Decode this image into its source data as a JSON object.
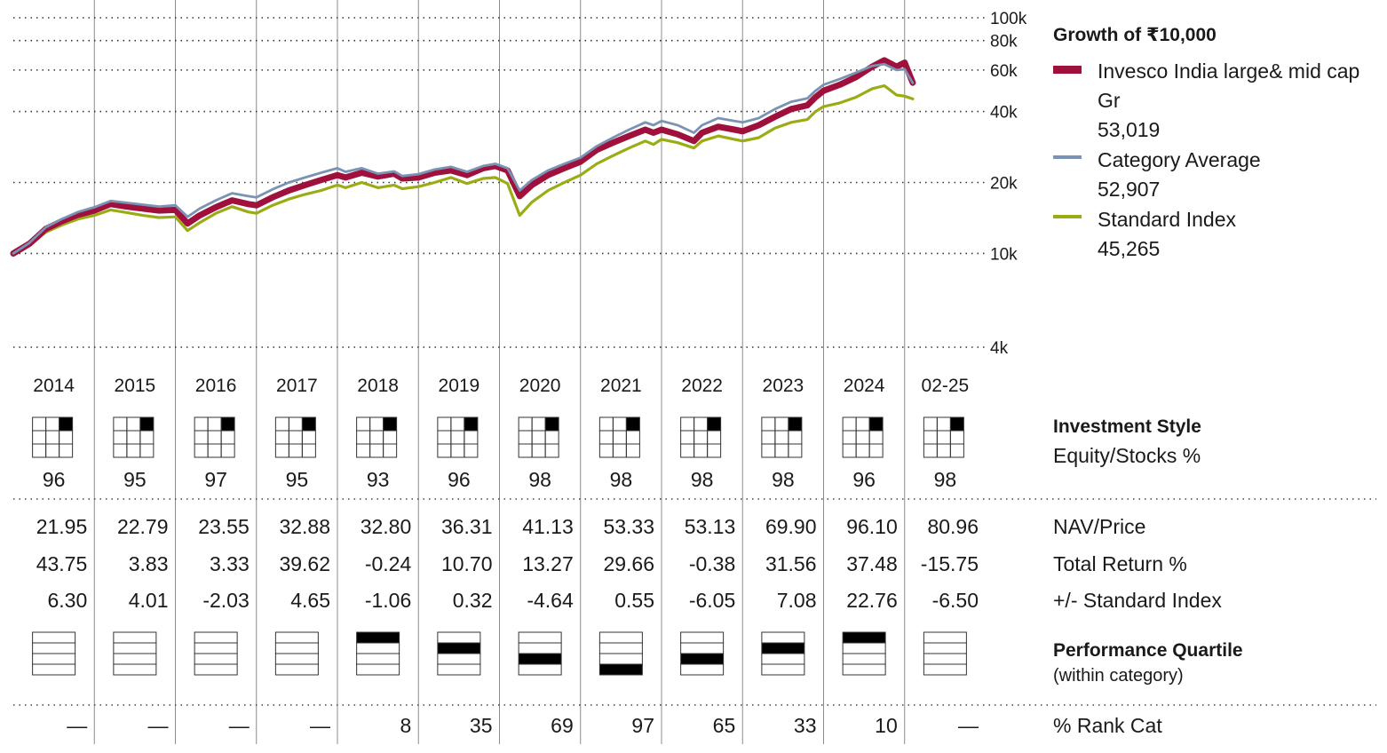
{
  "legend": {
    "title": "Growth of  ₹10,000",
    "items": [
      {
        "name": "Invesco India large& mid cap",
        "name_line2": "Gr",
        "value": "53,019",
        "color": "#a0103c"
      },
      {
        "name": "Category Average",
        "value": "52,907",
        "color": "#7a93b4"
      },
      {
        "name": "Standard Index",
        "value": "45,265",
        "color": "#9aac14"
      }
    ]
  },
  "columns": [
    "2014",
    "2015",
    "2016",
    "2017",
    "2018",
    "2019",
    "2020",
    "2021",
    "2022",
    "2023",
    "2024",
    "02-25"
  ],
  "style": {
    "title": "Investment Style",
    "subtitle": "Equity/Stocks %",
    "box": "large-growth",
    "equity_pct": [
      "96",
      "95",
      "97",
      "95",
      "93",
      "96",
      "98",
      "98",
      "98",
      "98",
      "96",
      "98"
    ]
  },
  "table": {
    "rows": [
      {
        "label": "NAV/Price",
        "values": [
          "21.95",
          "22.79",
          "23.55",
          "32.88",
          "32.80",
          "36.31",
          "41.13",
          "53.33",
          "53.13",
          "69.90",
          "96.10",
          "80.96"
        ]
      },
      {
        "label": "Total Return %",
        "values": [
          "43.75",
          "3.83",
          "3.33",
          "39.62",
          "-0.24",
          "10.70",
          "13.27",
          "29.66",
          "-0.38",
          "31.56",
          "37.48",
          "-15.75"
        ]
      },
      {
        "label": "+/- Standard Index",
        "values": [
          "6.30",
          "4.01",
          "-2.03",
          "4.65",
          "-1.06",
          "0.32",
          "-4.64",
          "0.55",
          "-6.05",
          "7.08",
          "22.76",
          "-6.50"
        ]
      }
    ]
  },
  "quartile": {
    "title": "Performance Quartile",
    "subtitle": "(within category)",
    "values": [
      null,
      null,
      null,
      null,
      1,
      2,
      3,
      4,
      3,
      2,
      1,
      null
    ]
  },
  "rank": {
    "label": "% Rank Cat",
    "values": [
      "—",
      "—",
      "—",
      "—",
      "8",
      "35",
      "69",
      "97",
      "65",
      "33",
      "10",
      "—"
    ]
  },
  "chart_data": {
    "type": "line",
    "scale": "log",
    "ylim": [
      4000,
      100000
    ],
    "yticks": [
      {
        "value": 100000,
        "label": "100k"
      },
      {
        "value": 80000,
        "label": "80k"
      },
      {
        "value": 60000,
        "label": "60k"
      },
      {
        "value": 40000,
        "label": "40k"
      },
      {
        "value": 20000,
        "label": "20k"
      },
      {
        "value": 10000,
        "label": "10k"
      },
      {
        "value": 4000,
        "label": "4k"
      }
    ],
    "xlim": [
      2014.0,
      2025.17
    ],
    "series": [
      {
        "name": "Standard Index",
        "color": "#9aac14",
        "points": [
          [
            2014.0,
            9800
          ],
          [
            2014.2,
            10800
          ],
          [
            2014.4,
            12300
          ],
          [
            2014.6,
            13200
          ],
          [
            2014.8,
            14000
          ],
          [
            2015.0,
            14500
          ],
          [
            2015.2,
            15300
          ],
          [
            2015.4,
            14900
          ],
          [
            2015.6,
            14500
          ],
          [
            2015.8,
            14200
          ],
          [
            2016.0,
            14300
          ],
          [
            2016.15,
            12500
          ],
          [
            2016.3,
            13500
          ],
          [
            2016.5,
            14800
          ],
          [
            2016.7,
            15800
          ],
          [
            2016.9,
            15000
          ],
          [
            2017.0,
            14800
          ],
          [
            2017.2,
            16000
          ],
          [
            2017.4,
            17000
          ],
          [
            2017.6,
            17800
          ],
          [
            2017.8,
            18500
          ],
          [
            2018.0,
            19500
          ],
          [
            2018.1,
            19000
          ],
          [
            2018.3,
            20000
          ],
          [
            2018.5,
            19000
          ],
          [
            2018.7,
            19500
          ],
          [
            2018.8,
            18800
          ],
          [
            2019.0,
            19200
          ],
          [
            2019.2,
            20000
          ],
          [
            2019.4,
            21000
          ],
          [
            2019.6,
            19800
          ],
          [
            2019.8,
            20800
          ],
          [
            2019.95,
            21000
          ],
          [
            2020.1,
            19800
          ],
          [
            2020.25,
            14500
          ],
          [
            2020.4,
            16500
          ],
          [
            2020.6,
            18500
          ],
          [
            2020.8,
            20000
          ],
          [
            2021.0,
            21500
          ],
          [
            2021.2,
            24000
          ],
          [
            2021.4,
            26000
          ],
          [
            2021.6,
            28000
          ],
          [
            2021.8,
            30000
          ],
          [
            2021.9,
            29000
          ],
          [
            2022.0,
            30500
          ],
          [
            2022.2,
            29500
          ],
          [
            2022.4,
            28000
          ],
          [
            2022.5,
            30000
          ],
          [
            2022.7,
            31500
          ],
          [
            2022.9,
            30500
          ],
          [
            2023.0,
            30000
          ],
          [
            2023.2,
            31000
          ],
          [
            2023.4,
            34000
          ],
          [
            2023.6,
            36000
          ],
          [
            2023.8,
            37000
          ],
          [
            2023.9,
            40000
          ],
          [
            2024.0,
            42000
          ],
          [
            2024.2,
            43500
          ],
          [
            2024.4,
            46000
          ],
          [
            2024.6,
            50000
          ],
          [
            2024.75,
            51500
          ],
          [
            2024.9,
            47000
          ],
          [
            2025.0,
            46500
          ],
          [
            2025.1,
            45265
          ]
        ]
      },
      {
        "name": "Invesco India large& mid cap Gr",
        "color": "#a0103c",
        "points": [
          [
            2014.0,
            10000
          ],
          [
            2014.2,
            11000
          ],
          [
            2014.4,
            12700
          ],
          [
            2014.6,
            13700
          ],
          [
            2014.8,
            14600
          ],
          [
            2015.0,
            15200
          ],
          [
            2015.2,
            16200
          ],
          [
            2015.4,
            15800
          ],
          [
            2015.6,
            15500
          ],
          [
            2015.8,
            15200
          ],
          [
            2016.0,
            15300
          ],
          [
            2016.15,
            13400
          ],
          [
            2016.3,
            14500
          ],
          [
            2016.5,
            15700
          ],
          [
            2016.7,
            16800
          ],
          [
            2016.9,
            16200
          ],
          [
            2017.0,
            16000
          ],
          [
            2017.2,
            17300
          ],
          [
            2017.4,
            18500
          ],
          [
            2017.6,
            19500
          ],
          [
            2017.8,
            20500
          ],
          [
            2018.0,
            21500
          ],
          [
            2018.1,
            21000
          ],
          [
            2018.3,
            22000
          ],
          [
            2018.5,
            21200
          ],
          [
            2018.7,
            21800
          ],
          [
            2018.8,
            20800
          ],
          [
            2019.0,
            21000
          ],
          [
            2019.2,
            22000
          ],
          [
            2019.4,
            22500
          ],
          [
            2019.6,
            21500
          ],
          [
            2019.8,
            23000
          ],
          [
            2019.95,
            23500
          ],
          [
            2020.1,
            22500
          ],
          [
            2020.25,
            17500
          ],
          [
            2020.4,
            19500
          ],
          [
            2020.6,
            21500
          ],
          [
            2020.8,
            23000
          ],
          [
            2021.0,
            24500
          ],
          [
            2021.2,
            27500
          ],
          [
            2021.4,
            29500
          ],
          [
            2021.6,
            31500
          ],
          [
            2021.8,
            33500
          ],
          [
            2021.9,
            32500
          ],
          [
            2022.0,
            33500
          ],
          [
            2022.2,
            32000
          ],
          [
            2022.4,
            30000
          ],
          [
            2022.5,
            32500
          ],
          [
            2022.7,
            34500
          ],
          [
            2022.9,
            33500
          ],
          [
            2023.0,
            33000
          ],
          [
            2023.2,
            35000
          ],
          [
            2023.4,
            38000
          ],
          [
            2023.6,
            41000
          ],
          [
            2023.8,
            42500
          ],
          [
            2023.9,
            46000
          ],
          [
            2024.0,
            49000
          ],
          [
            2024.2,
            52000
          ],
          [
            2024.4,
            56000
          ],
          [
            2024.6,
            62000
          ],
          [
            2024.75,
            66000
          ],
          [
            2024.9,
            62000
          ],
          [
            2025.0,
            64500
          ],
          [
            2025.1,
            53019
          ]
        ]
      },
      {
        "name": "Category Average",
        "color": "#7a93b4",
        "points": [
          [
            2014.0,
            10000
          ],
          [
            2014.2,
            11100
          ],
          [
            2014.4,
            12900
          ],
          [
            2014.6,
            14000
          ],
          [
            2014.8,
            15000
          ],
          [
            2015.0,
            15700
          ],
          [
            2015.2,
            16700
          ],
          [
            2015.4,
            16400
          ],
          [
            2015.6,
            16100
          ],
          [
            2015.8,
            15800
          ],
          [
            2016.0,
            16000
          ],
          [
            2016.15,
            14300
          ],
          [
            2016.3,
            15500
          ],
          [
            2016.5,
            16800
          ],
          [
            2016.7,
            18000
          ],
          [
            2016.9,
            17500
          ],
          [
            2017.0,
            17300
          ],
          [
            2017.2,
            18700
          ],
          [
            2017.4,
            20000
          ],
          [
            2017.6,
            21000
          ],
          [
            2017.8,
            22000
          ],
          [
            2018.0,
            23000
          ],
          [
            2018.1,
            22200
          ],
          [
            2018.3,
            23000
          ],
          [
            2018.5,
            21800
          ],
          [
            2018.7,
            22300
          ],
          [
            2018.8,
            21300
          ],
          [
            2019.0,
            21700
          ],
          [
            2019.2,
            22700
          ],
          [
            2019.4,
            23300
          ],
          [
            2019.6,
            22200
          ],
          [
            2019.8,
            23500
          ],
          [
            2019.95,
            24000
          ],
          [
            2020.1,
            23000
          ],
          [
            2020.25,
            18500
          ],
          [
            2020.4,
            20500
          ],
          [
            2020.6,
            22500
          ],
          [
            2020.8,
            24000
          ],
          [
            2021.0,
            25500
          ],
          [
            2021.2,
            28500
          ],
          [
            2021.4,
            31000
          ],
          [
            2021.6,
            33500
          ],
          [
            2021.8,
            36000
          ],
          [
            2021.9,
            35000
          ],
          [
            2022.0,
            36500
          ],
          [
            2022.2,
            35000
          ],
          [
            2022.4,
            32500
          ],
          [
            2022.5,
            35000
          ],
          [
            2022.7,
            37500
          ],
          [
            2022.9,
            36500
          ],
          [
            2023.0,
            36000
          ],
          [
            2023.2,
            37500
          ],
          [
            2023.4,
            41000
          ],
          [
            2023.6,
            44000
          ],
          [
            2023.8,
            45500
          ],
          [
            2023.9,
            49000
          ],
          [
            2024.0,
            52000
          ],
          [
            2024.2,
            55000
          ],
          [
            2024.4,
            58500
          ],
          [
            2024.6,
            62500
          ],
          [
            2024.75,
            63500
          ],
          [
            2024.9,
            60000
          ],
          [
            2025.0,
            60500
          ],
          [
            2025.1,
            52907
          ]
        ]
      }
    ]
  }
}
